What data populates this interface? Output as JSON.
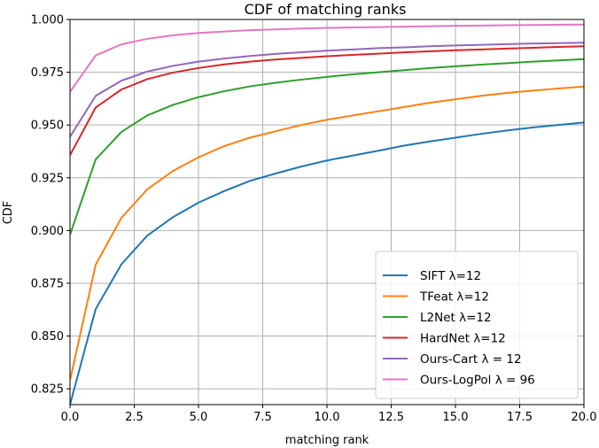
{
  "chart_data": {
    "type": "line",
    "title": "CDF of matching ranks",
    "xlabel": "matching rank",
    "ylabel": "CDF",
    "xlim": [
      0,
      20
    ],
    "ylim": [
      0.8175,
      1.0
    ],
    "xticks": [
      0,
      2.5,
      5,
      7.5,
      10,
      12.5,
      15,
      17.5,
      20
    ],
    "xtick_labels": [
      "0.0",
      "2.5",
      "5.0",
      "7.5",
      "10.0",
      "12.5",
      "15.0",
      "17.5",
      "20.0"
    ],
    "yticks": [
      0.825,
      0.85,
      0.875,
      0.9,
      0.925,
      0.95,
      0.975,
      1.0
    ],
    "ytick_labels": [
      "0.825",
      "0.850",
      "0.875",
      "0.900",
      "0.925",
      "0.950",
      "0.975",
      "1.000"
    ],
    "grid": true,
    "legend_position": "lower-right",
    "x": [
      0,
      1,
      2,
      3,
      4,
      5,
      6,
      7,
      8,
      9,
      10,
      11,
      12,
      13,
      14,
      15,
      16,
      17,
      18,
      19,
      20
    ],
    "series": [
      {
        "name": "SIFT λ=12",
        "color": "#1f77b4",
        "values": [
          0.8175,
          0.8628,
          0.884,
          0.8975,
          0.9063,
          0.9132,
          0.9187,
          0.9235,
          0.927,
          0.9303,
          0.9332,
          0.9355,
          0.9378,
          0.9402,
          0.9422,
          0.944,
          0.9458,
          0.9474,
          0.9488,
          0.95,
          0.9512
        ]
      },
      {
        "name": "TFeat λ=12",
        "color": "#ff7f0e",
        "values": [
          0.829,
          0.8838,
          0.906,
          0.9194,
          0.9282,
          0.9347,
          0.94,
          0.944,
          0.947,
          0.95,
          0.9525,
          0.9545,
          0.9565,
          0.9585,
          0.9605,
          0.9622,
          0.9638,
          0.9652,
          0.9663,
          0.9673,
          0.9682
        ]
      },
      {
        "name": "L2Net λ=12",
        "color": "#2ca02c",
        "values": [
          0.898,
          0.9337,
          0.9467,
          0.9545,
          0.9595,
          0.9632,
          0.966,
          0.9683,
          0.97,
          0.9715,
          0.9728,
          0.974,
          0.975,
          0.976,
          0.977,
          0.9778,
          0.9786,
          0.9793,
          0.98,
          0.9806,
          0.9812
        ]
      },
      {
        "name": "HardNet λ=12",
        "color": "#d62728",
        "values": [
          0.9357,
          0.9583,
          0.9668,
          0.9717,
          0.9748,
          0.977,
          0.9787,
          0.98,
          0.981,
          0.9818,
          0.9826,
          0.9832,
          0.9838,
          0.9844,
          0.9849,
          0.9854,
          0.9858,
          0.9862,
          0.9866,
          0.987,
          0.9873
        ]
      },
      {
        "name": "Ours-Cart λ = 12",
        "color": "#9467bd",
        "values": [
          0.9444,
          0.9638,
          0.971,
          0.9753,
          0.978,
          0.98,
          0.9815,
          0.9827,
          0.9837,
          0.9845,
          0.9852,
          0.9858,
          0.9864,
          0.9868,
          0.9873,
          0.9877,
          0.988,
          0.9883,
          0.9886,
          0.9888,
          0.989
        ]
      },
      {
        "name": "Ours-LogPol λ = 96",
        "color": "#e377c2",
        "values": [
          0.9657,
          0.983,
          0.9882,
          0.9908,
          0.9925,
          0.9936,
          0.9943,
          0.9949,
          0.9953,
          0.9957,
          0.996,
          0.9962,
          0.9964,
          0.9966,
          0.9968,
          0.997,
          0.9971,
          0.9973,
          0.9974,
          0.9975,
          0.9976
        ]
      }
    ]
  }
}
